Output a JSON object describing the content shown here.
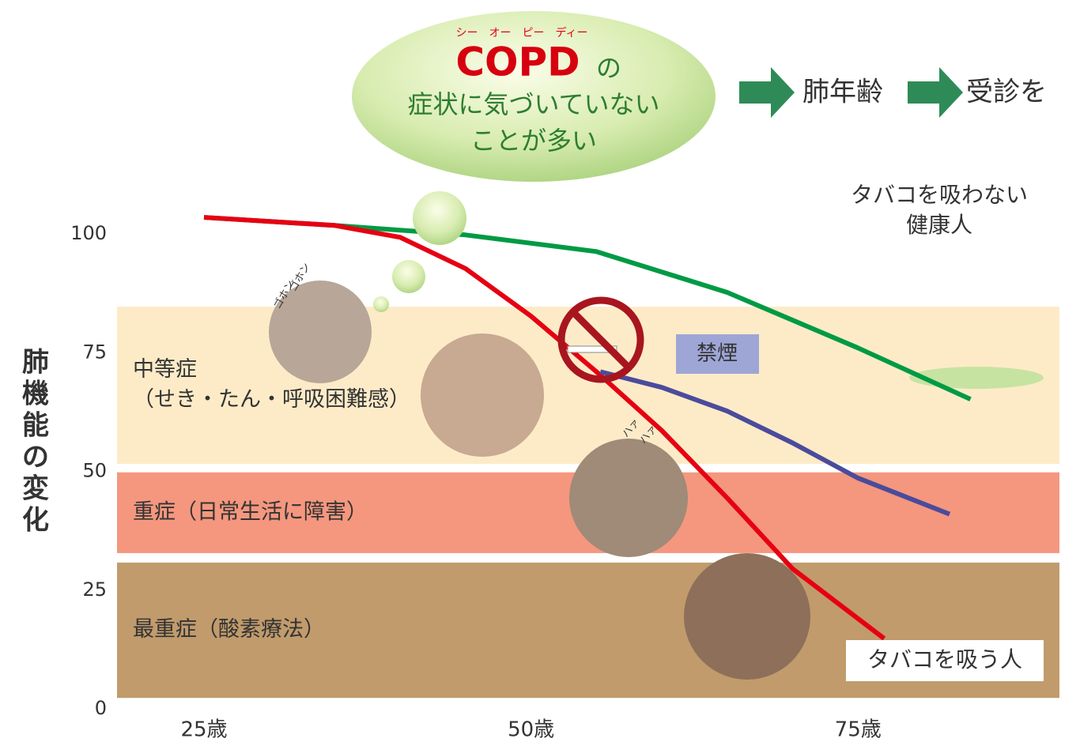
{
  "chart_data": {
    "type": "line",
    "title": {
      "ruby": "シー　オー　ピー　ディー",
      "main": "COPD",
      "particle": "の",
      "line1": "症状に気づいていない",
      "line2": "ことが多い"
    },
    "arrow_labels": [
      "肺年齢",
      "受診を"
    ],
    "y_label": "肺機能の変化",
    "xlim": [
      18.35,
      90.4
    ],
    "ylim": [
      0,
      110
    ],
    "xticks": [
      {
        "value": 25,
        "label": "25歳"
      },
      {
        "value": 50,
        "label": "50歳"
      },
      {
        "value": 75,
        "label": "75歳"
      }
    ],
    "yticks": [
      0,
      25,
      50,
      75,
      100
    ],
    "bands": [
      {
        "label": [
          "中等症",
          "（せき・たん・呼吸困難感）"
        ],
        "from": 51.6,
        "to": 84.7,
        "color": "#fdebc8"
      },
      {
        "label": [
          "重症（日常生活に障害）"
        ],
        "from": 32.8,
        "to": 49.8,
        "color": "#f4977e"
      },
      {
        "label": [
          "最重症（酸素療法）"
        ],
        "from": 2.3,
        "to": 30.8,
        "color": "#c19b6c"
      }
    ],
    "series": [
      {
        "name": [
          "タバコを吸わない",
          "健康人"
        ],
        "color": "#009a44",
        "x": [
          25,
          35,
          45,
          55,
          65,
          75,
          83.6
        ],
        "values": [
          103.5,
          101.8,
          99.8,
          96.3,
          87.7,
          76,
          65.2
        ]
      },
      {
        "name": [
          "タバコを吸う人"
        ],
        "color": "#e60012",
        "x": [
          25,
          35,
          40,
          45,
          50,
          55,
          60,
          65,
          70,
          77
        ],
        "values": [
          103.5,
          101.8,
          99.3,
          92.7,
          82.7,
          71,
          58.6,
          44.4,
          29.5,
          14.8
        ]
      },
      {
        "name": [
          "禁煙"
        ],
        "color": "#4b4b9c",
        "x": [
          55.3,
          60,
          65,
          70,
          75,
          82
        ],
        "values": [
          71,
          67.7,
          62.7,
          56,
          48.6,
          41
        ]
      }
    ],
    "annotations": [
      "ゴホン",
      "ゴホン",
      "ハァ",
      "ハァ"
    ]
  }
}
